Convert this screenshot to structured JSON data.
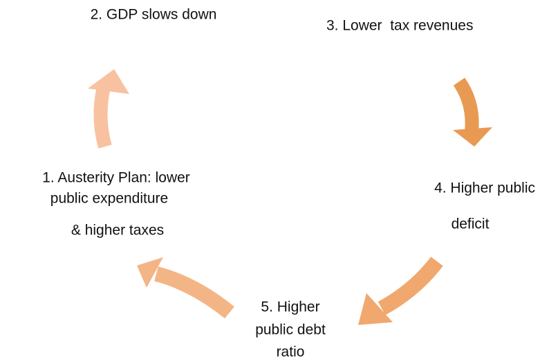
{
  "nodes": [
    {
      "lines": [
        "1. Austerity Plan: lower",
        "public expenditure",
        "& higher taxes"
      ]
    },
    {
      "lines": [
        "2. GDP slows down"
      ]
    },
    {
      "lines": [
        "3. Lower  tax revenues"
      ]
    },
    {
      "lines": [
        "4. Higher public",
        "deficit"
      ]
    },
    {
      "lines": [
        "5. Higher",
        "public debt",
        "ratio"
      ]
    }
  ]
}
